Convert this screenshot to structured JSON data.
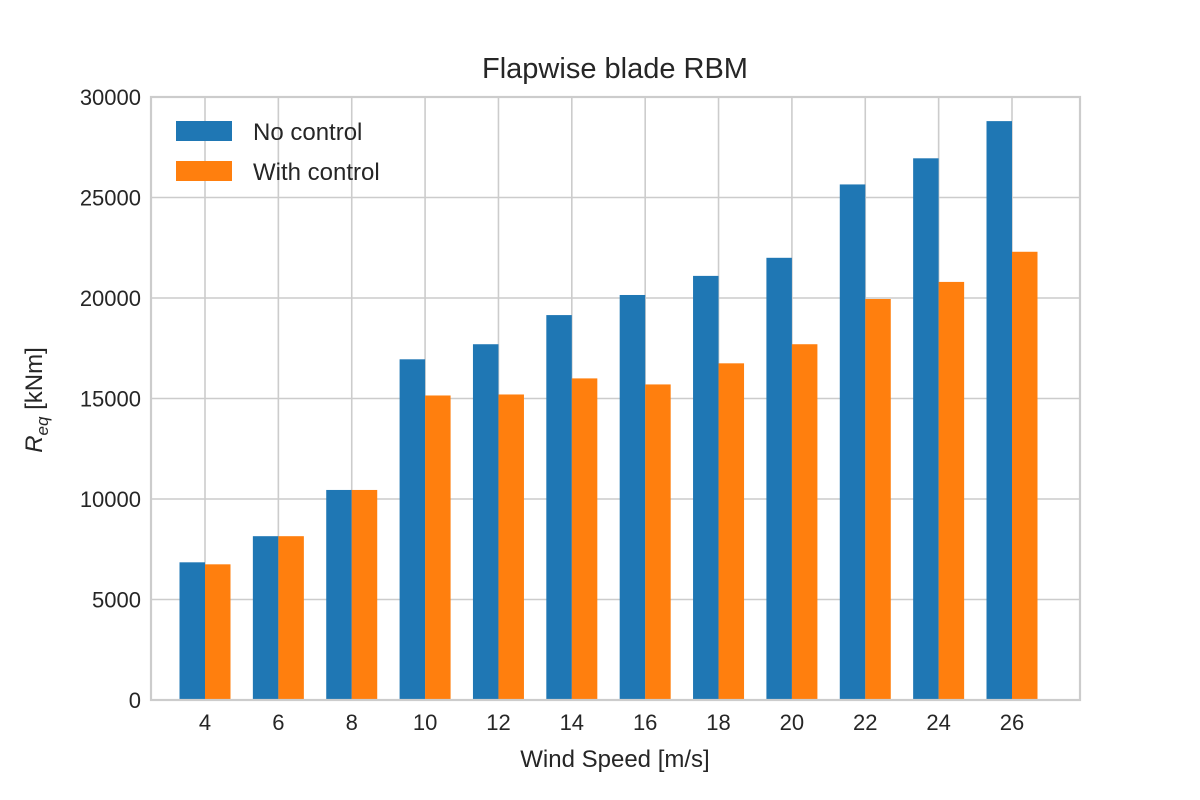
{
  "chart_data": {
    "type": "bar",
    "title": "Flapwise blade RBM",
    "xlabel": "Wind Speed [m/s]",
    "ylabel_main": "R",
    "ylabel_sub": "eq",
    "ylabel_unit": " [kNm]",
    "categories": [
      "4",
      "6",
      "8",
      "10",
      "12",
      "14",
      "16",
      "18",
      "20",
      "22",
      "24",
      "26"
    ],
    "series": [
      {
        "name": "No control",
        "color": "#1f77b4",
        "values": [
          6850,
          8150,
          10450,
          16950,
          17700,
          19150,
          20150,
          21100,
          22000,
          25650,
          26950,
          28800
        ]
      },
      {
        "name": "With control",
        "color": "#ff7f0e",
        "values": [
          6750,
          8150,
          10450,
          15150,
          15200,
          16000,
          15700,
          16750,
          17700,
          19950,
          20800,
          22300
        ]
      }
    ],
    "ylim": [
      0,
      30000
    ],
    "yticks": [
      "0",
      "5000",
      "10000",
      "15000",
      "20000",
      "25000",
      "30000"
    ],
    "grid": true,
    "legend_position": "top-left"
  }
}
